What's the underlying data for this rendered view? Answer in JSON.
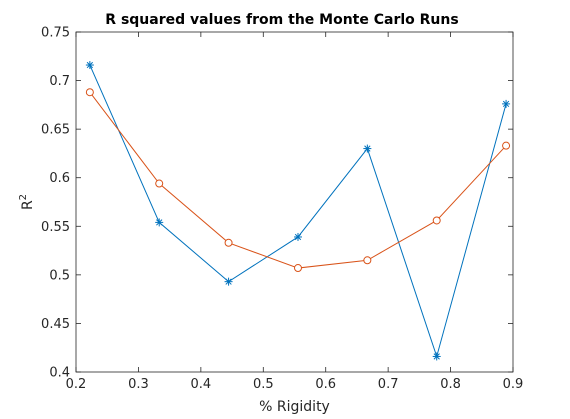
{
  "chart_data": {
    "type": "line",
    "title": "R squared values from the Monte Carlo Runs",
    "xlabel": "% Rigidity",
    "ylabel": "R",
    "ylabel_superscript": "2",
    "xlim": [
      0.2,
      0.9
    ],
    "ylim": [
      0.4,
      0.75
    ],
    "xticks": [
      "0.2",
      "0.3",
      "0.4",
      "0.5",
      "0.6",
      "0.7",
      "0.8",
      "0.9"
    ],
    "yticks": [
      "0.4",
      "0.45",
      "0.5",
      "0.55",
      "0.6",
      "0.65",
      "0.7",
      "0.75"
    ],
    "grid": false,
    "x": [
      0.2222,
      0.3333,
      0.4444,
      0.5556,
      0.6667,
      0.7778,
      0.8889
    ],
    "series": [
      {
        "values": [
          0.716,
          0.554,
          0.493,
          0.539,
          0.63,
          0.416,
          0.676
        ],
        "color": "#0072BD",
        "marker": "asterisk"
      },
      {
        "values": [
          0.688,
          0.594,
          0.533,
          0.507,
          0.515,
          0.556,
          0.633
        ],
        "color": "#D95319",
        "marker": "circle"
      }
    ]
  }
}
